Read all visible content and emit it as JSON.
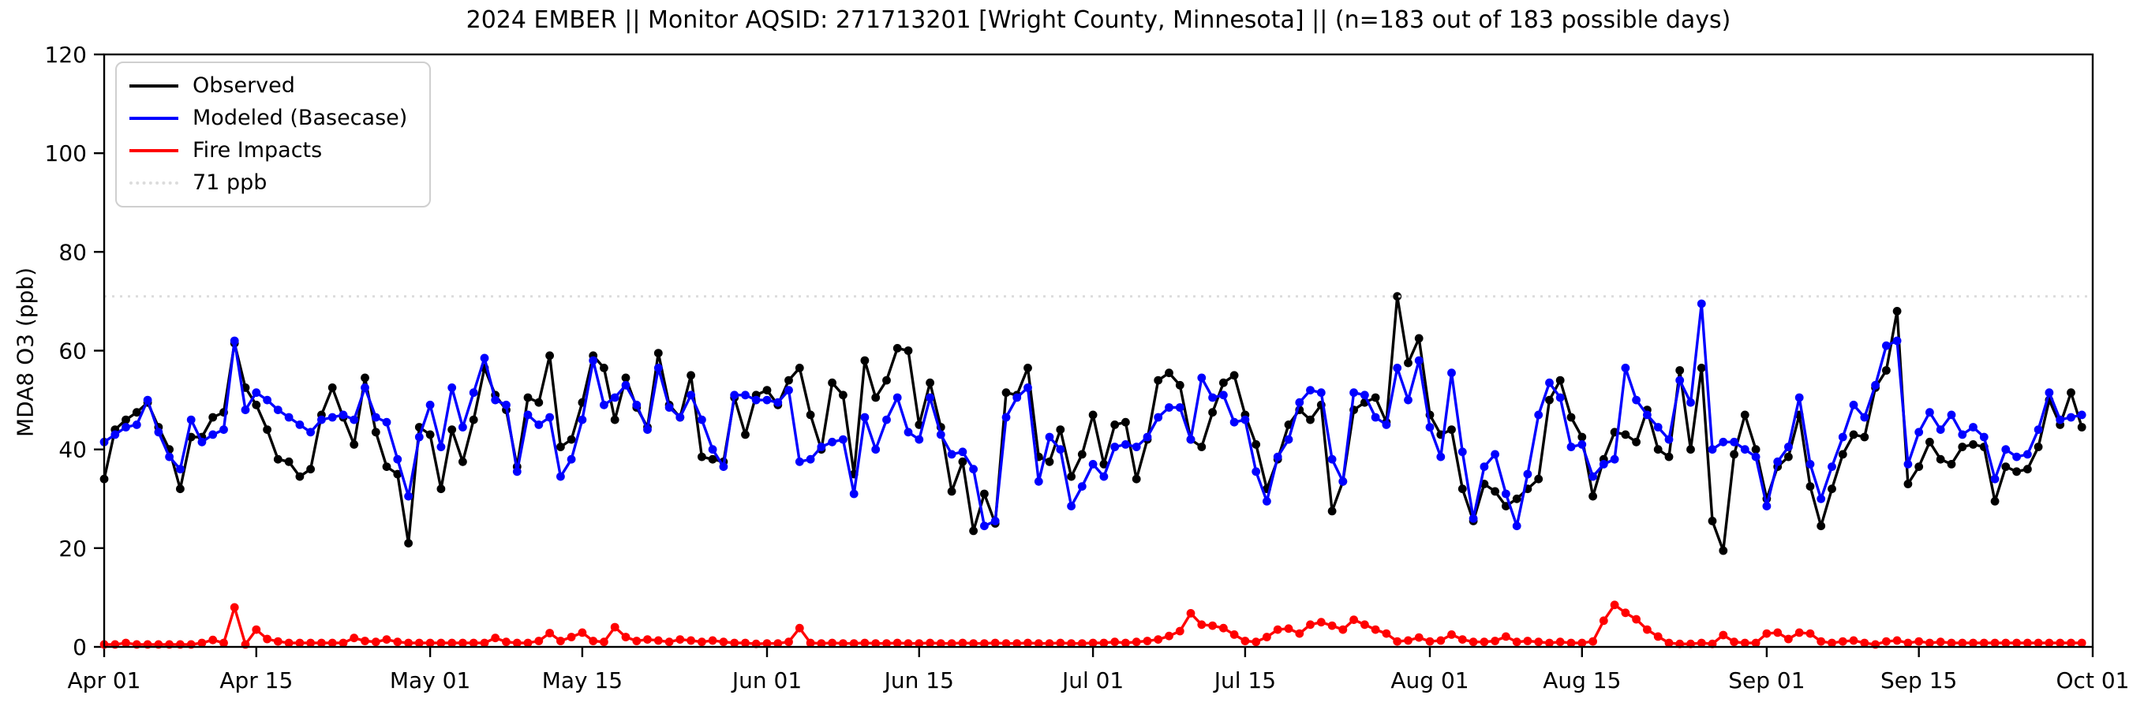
{
  "title": "2024 EMBER || Monitor AQSID: 271713201 [Wright County, Minnesota] || (n=183 out of 183 possible days)",
  "chart_data": {
    "type": "line",
    "title": "2024 EMBER || Monitor AQSID: 271713201 [Wright County, Minnesota] || (n=183 out of 183 possible days)",
    "xlabel": "",
    "ylabel": "MDA8 O3 (ppb)",
    "ylim": [
      0,
      120
    ],
    "yticks": [
      0,
      20,
      40,
      60,
      80,
      100,
      120
    ],
    "grid": false,
    "legend_position": "upper-left",
    "x_days_total": 183,
    "x_start": "Apr 01",
    "x_end": "Oct 01",
    "xticks": [
      {
        "day": 0,
        "label": "Apr 01"
      },
      {
        "day": 14,
        "label": "Apr 15"
      },
      {
        "day": 30,
        "label": "May 01"
      },
      {
        "day": 44,
        "label": "May 15"
      },
      {
        "day": 61,
        "label": "Jun 01"
      },
      {
        "day": 75,
        "label": "Jun 15"
      },
      {
        "day": 91,
        "label": "Jul 01"
      },
      {
        "day": 105,
        "label": "Jul 15"
      },
      {
        "day": 122,
        "label": "Aug 01"
      },
      {
        "day": 136,
        "label": "Aug 15"
      },
      {
        "day": 153,
        "label": "Sep 01"
      },
      {
        "day": 167,
        "label": "Sep 15"
      },
      {
        "day": 183,
        "label": "Oct 01"
      }
    ],
    "threshold": {
      "label": "71 ppb",
      "value": 71,
      "color": "#dcdcdc",
      "style": "dotted"
    },
    "series": [
      {
        "name": "Observed",
        "color": "#000000",
        "values": [
          34,
          44,
          46,
          47.5,
          49.5,
          44.5,
          40,
          32,
          42.5,
          42.5,
          46.5,
          47.5,
          61.5,
          52.5,
          49,
          44,
          38,
          37.5,
          34.5,
          36,
          47,
          52.5,
          46.5,
          41,
          54.5,
          43.5,
          36.5,
          35,
          21,
          44.5,
          43,
          32,
          44,
          37.5,
          46,
          56.5,
          51,
          48,
          36.5,
          50.5,
          49.5,
          59,
          40.5,
          42,
          49.5,
          59,
          56.5,
          46,
          54.5,
          48.5,
          44.5,
          59.5,
          49,
          46.5,
          55,
          38.5,
          38,
          37.5,
          50.5,
          43,
          51,
          52,
          49,
          54,
          56.5,
          47,
          40,
          53.5,
          51,
          35,
          58,
          50.5,
          54,
          60.5,
          60,
          45,
          53.5,
          44.5,
          31.5,
          37.5,
          23.5,
          31,
          25,
          51.5,
          51,
          56.5,
          38.5,
          37.5,
          44,
          34.5,
          39,
          47,
          37,
          45,
          45.5,
          34,
          42,
          54,
          55.5,
          53,
          42,
          40.5,
          47.5,
          53.5,
          55,
          47,
          41,
          32,
          38,
          45,
          48,
          46,
          49,
          27.5,
          33.5,
          48,
          49.5,
          50.5,
          45.5,
          71,
          57.5,
          62.5,
          47,
          43,
          44,
          32,
          25.5,
          33,
          31.5,
          28.5,
          30,
          32,
          34,
          50,
          54,
          46.5,
          42.5,
          30.5,
          38,
          43.5,
          43,
          41.5,
          48,
          40,
          38.5,
          56,
          40,
          56.5,
          25.5,
          19.5,
          39,
          47,
          40,
          30,
          36.5,
          38.5,
          47,
          32.5,
          24.5,
          32,
          39,
          43,
          42.5,
          52.5,
          56,
          68,
          33,
          36.5,
          41.5,
          38,
          37,
          40.5,
          41,
          40.5,
          29.5,
          36.5,
          35.5,
          36,
          40.5,
          50,
          45,
          51.5,
          44.5
        ]
      },
      {
        "name": "Modeled (Basecase)",
        "color": "#0000ff",
        "values": [
          41.5,
          43,
          44.5,
          45,
          50,
          43.5,
          38.5,
          36,
          46,
          41.5,
          43,
          44,
          62,
          48,
          51.5,
          50,
          48,
          46.5,
          45,
          43.5,
          46,
          46.5,
          47,
          46,
          52.5,
          46.5,
          45.5,
          38,
          30.5,
          42.5,
          49,
          40.5,
          52.5,
          44.5,
          51.5,
          58.5,
          50,
          49,
          35.5,
          47,
          45,
          46.5,
          34.5,
          38,
          46,
          58,
          49,
          50.5,
          53,
          49,
          44,
          56.5,
          48.5,
          46.5,
          51,
          46,
          40,
          36.5,
          51,
          51,
          50,
          50,
          49.5,
          52,
          37.5,
          38,
          40.5,
          41.5,
          42,
          31,
          46.5,
          40,
          46,
          50.5,
          43.5,
          42,
          50.5,
          43,
          39,
          39.5,
          36,
          24.5,
          25.5,
          46.5,
          50.5,
          52.5,
          33.5,
          42.5,
          40,
          28.5,
          32.5,
          37,
          34.5,
          40.5,
          41,
          40.5,
          42.5,
          46.5,
          48.5,
          48.5,
          42,
          54.5,
          50.5,
          51,
          45.5,
          46,
          35.5,
          29.5,
          38.5,
          42,
          49.5,
          52,
          51.5,
          38,
          33.5,
          51.5,
          51,
          46.5,
          45,
          56.5,
          50,
          58,
          44.5,
          38.5,
          55.5,
          39.5,
          26,
          36.5,
          39,
          31,
          24.5,
          35,
          47,
          53.5,
          50.5,
          40.5,
          41,
          34.5,
          37,
          38,
          56.5,
          50,
          47,
          44.5,
          42,
          54,
          49.5,
          69.5,
          40,
          41.5,
          41.5,
          40,
          38.5,
          28.5,
          37.5,
          40.5,
          50.5,
          37,
          30,
          36.5,
          42.5,
          49,
          46.5,
          53,
          61,
          62,
          37,
          43.5,
          47.5,
          44,
          47,
          43,
          44.5,
          42.5,
          34,
          40,
          38.5,
          39,
          44,
          51.5,
          46,
          46.5,
          47
        ]
      },
      {
        "name": "Fire Impacts",
        "color": "#ff0000",
        "values": [
          0.5,
          0.5,
          0.8,
          0.5,
          0.5,
          0.5,
          0.5,
          0.5,
          0.5,
          0.8,
          1.4,
          0.8,
          8,
          0.5,
          3.5,
          1.6,
          1.1,
          0.8,
          0.8,
          0.8,
          0.8,
          0.8,
          0.8,
          1.8,
          1.2,
          1,
          1.5,
          1,
          0.8,
          0.8,
          0.8,
          0.8,
          0.8,
          0.8,
          0.8,
          0.8,
          1.8,
          1,
          0.8,
          0.8,
          1.2,
          2.8,
          1.2,
          2,
          2.9,
          1.2,
          1,
          4,
          2,
          1.2,
          1.5,
          1.3,
          1,
          1.5,
          1.3,
          1,
          1.3,
          1,
          0.8,
          0.8,
          0.6,
          0.7,
          0.7,
          1,
          3.8,
          0.8,
          0.7,
          0.8,
          0.7,
          0.7,
          0.8,
          0.7,
          0.7,
          0.8,
          0.7,
          0.7,
          0.8,
          0.7,
          0.7,
          0.8,
          0.7,
          0.7,
          0.8,
          0.7,
          0.7,
          0.8,
          0.7,
          0.7,
          0.8,
          0.7,
          0.7,
          0.8,
          0.8,
          1,
          0.8,
          1,
          1.2,
          1.5,
          2.2,
          3.2,
          6.8,
          4.5,
          4.3,
          3.8,
          2.5,
          1.2,
          1,
          2,
          3.5,
          3.7,
          2.7,
          4.5,
          5,
          4.3,
          3.5,
          5.5,
          4.5,
          3.5,
          2.7,
          1.1,
          1.3,
          1.9,
          1.1,
          1.3,
          2.5,
          1.5,
          1,
          1,
          1.2,
          2.1,
          1,
          1.2,
          1,
          0.8,
          1,
          0.8,
          0.8,
          1.1,
          5.3,
          8.5,
          6.9,
          5.6,
          3.5,
          2.1,
          0.8,
          0.6,
          0.6,
          0.8,
          0.6,
          2.4,
          1,
          0.8,
          0.8,
          2.7,
          2.9,
          1.6,
          2.9,
          2.7,
          1.1,
          0.8,
          1.1,
          1.3,
          0.8,
          0.5,
          1.1,
          1.3,
          0.8,
          1.1,
          0.8,
          1,
          0.8,
          0.8,
          0.8,
          0.8,
          0.8,
          0.8,
          0.8,
          0.8,
          0.8,
          0.8,
          0.8,
          0.8,
          0.8
        ]
      }
    ],
    "legend": [
      "Observed",
      "Modeled (Basecase)",
      "Fire Impacts",
      "71 ppb"
    ]
  }
}
